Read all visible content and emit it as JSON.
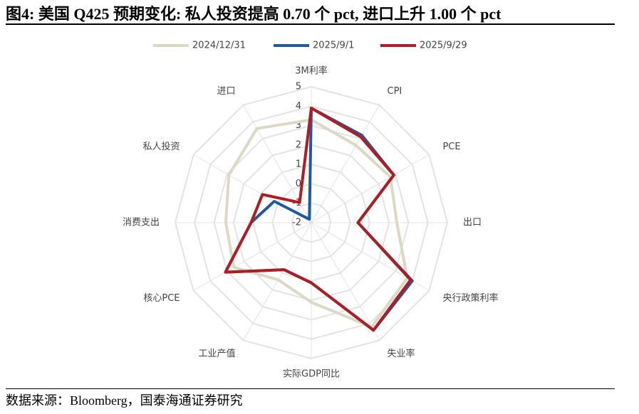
{
  "chart_data": {
    "type": "radar",
    "title": "图4:  美国 Q425 预期变化: 私人投资提高 0.70 个 pct, 进口上升 1.00 个 pct",
    "note": "数据来源：Bloomberg，国泰海通证券研究",
    "categories": [
      "3M利率",
      "CPI",
      "PCE",
      "出口",
      "央行政策利率",
      "失业率",
      "实际GDP同比",
      "工业产值",
      "核心PCE",
      "消费支出",
      "私人投资",
      "进口"
    ],
    "series": [
      {
        "name": "2024/12/31",
        "color": "#ddd8c4",
        "values": [
          3.3,
          2.6,
          2.7,
          2.4,
          3.7,
          4.2,
          2.1,
          1.4,
          2.6,
          2.4,
          2.9,
          3.6
        ]
      },
      {
        "name": "2025/9/1",
        "color": "#1f5aa0",
        "values": [
          3.9,
          3.2,
          2.9,
          0.4,
          4.0,
          4.4,
          1.1,
          0.8,
          3.1,
          1.1,
          0.2,
          -1.8
        ]
      },
      {
        "name": "2025/9/29",
        "color": "#b01c22",
        "values": [
          3.9,
          3.1,
          2.9,
          0.4,
          3.9,
          4.4,
          1.1,
          0.8,
          3.1,
          1.1,
          0.9,
          -0.8
        ]
      }
    ],
    "ylim": [
      -2,
      5
    ],
    "yticks": [
      -2,
      -1,
      0,
      1,
      2,
      3,
      4,
      5
    ],
    "grid": true
  }
}
